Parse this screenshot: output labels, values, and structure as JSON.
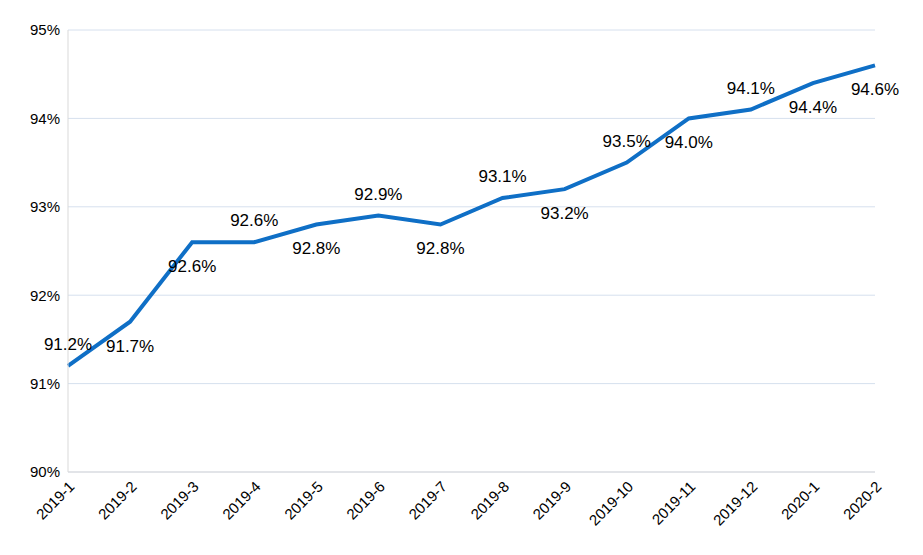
{
  "chart_data": {
    "type": "line",
    "categories": [
      "2019-1",
      "2019-2",
      "2019-3",
      "2019-4",
      "2019-5",
      "2019-6",
      "2019-7",
      "2019-8",
      "2019-9",
      "2019-10",
      "2019-11",
      "2019-12",
      "2020-1",
      "2020-2"
    ],
    "values": [
      91.2,
      91.7,
      92.6,
      92.6,
      92.8,
      92.9,
      92.8,
      93.1,
      93.2,
      93.5,
      94.0,
      94.1,
      94.4,
      94.6
    ],
    "value_labels": [
      "91.2%",
      "91.7%",
      "92.6%",
      "92.6%",
      "92.8%",
      "92.9%",
      "92.8%",
      "93.1%",
      "93.2%",
      "93.5%",
      "94.0%",
      "94.1%",
      "94.4%",
      "94.6%"
    ],
    "color": "#0f6fc6",
    "ylim": [
      90,
      95
    ],
    "yticks": [
      {
        "value": 90,
        "label": "90%"
      },
      {
        "value": 91,
        "label": "91%"
      },
      {
        "value": 92,
        "label": "92%"
      },
      {
        "value": 93,
        "label": "93%"
      },
      {
        "value": 94,
        "label": "94%"
      },
      {
        "value": 95,
        "label": "95%"
      }
    ],
    "grid": true,
    "data_labels": true
  }
}
